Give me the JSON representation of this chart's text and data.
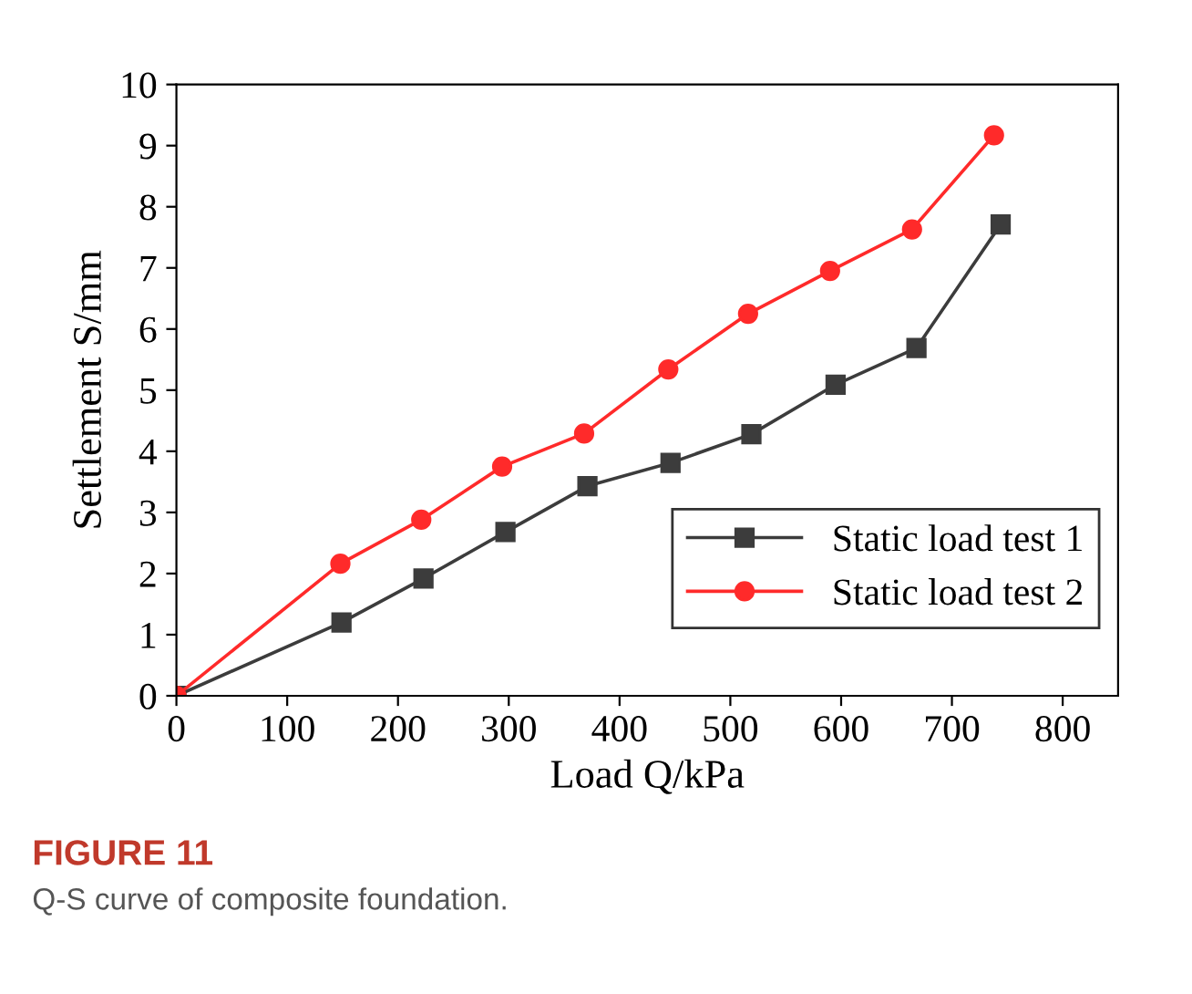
{
  "chart_data": {
    "type": "line",
    "xlabel": "Load Q/kPa",
    "ylabel": "Settlement S/mm",
    "annotations": [
      "FIGURE 11",
      "Q-S curve of composite foundation."
    ],
    "xlim": [
      0,
      850
    ],
    "ylim": [
      0,
      10
    ],
    "xticks": [
      0,
      100,
      200,
      300,
      400,
      500,
      600,
      700,
      800
    ],
    "yticks": [
      0,
      1,
      2,
      3,
      4,
      5,
      6,
      7,
      8,
      9,
      10
    ],
    "grid": false,
    "legend": "bottom right",
    "line_style": "solid",
    "series": [
      {
        "name": "Static load test 1",
        "color": "#3c3c3c",
        "marker": "square",
        "x": [
          0,
          149,
          223,
          297,
          371,
          446,
          519,
          595,
          668,
          744
        ],
        "values": [
          0,
          1.2,
          1.92,
          2.68,
          3.43,
          3.81,
          4.28,
          5.09,
          5.69,
          7.71
        ]
      },
      {
        "name": "Static load test 2",
        "color": "#ff2a2a",
        "marker": "circle",
        "x": [
          0,
          148,
          221,
          294,
          368,
          444,
          516,
          590,
          664,
          738
        ],
        "values": [
          0,
          2.16,
          2.88,
          3.75,
          4.29,
          5.34,
          6.25,
          6.95,
          7.63,
          9.17
        ]
      }
    ]
  }
}
